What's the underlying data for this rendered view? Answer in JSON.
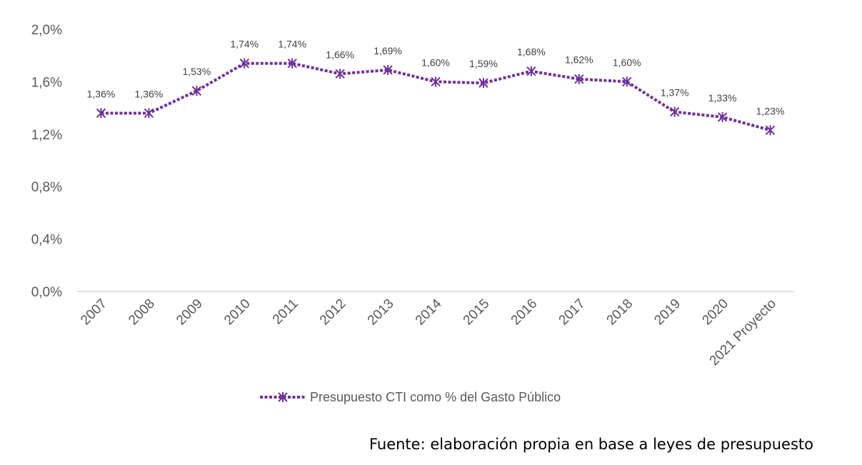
{
  "chart_data": {
    "type": "line",
    "categories": [
      "2007",
      "2008",
      "2009",
      "2010",
      "2011",
      "2012",
      "2013",
      "2014",
      "2015",
      "2016",
      "2017",
      "2018",
      "2019",
      "2020",
      "2021 Proyecto"
    ],
    "series": [
      {
        "name": "Presupuesto CTI como % del Gasto Público",
        "values": [
          1.36,
          1.36,
          1.53,
          1.74,
          1.74,
          1.66,
          1.69,
          1.6,
          1.59,
          1.68,
          1.62,
          1.6,
          1.37,
          1.33,
          1.23
        ],
        "labels": [
          "1,36%",
          "1,36%",
          "1,53%",
          "1,74%",
          "1,74%",
          "1,66%",
          "1,69%",
          "1,60%",
          "1,59%",
          "1,68%",
          "1,62%",
          "1,60%",
          "1,37%",
          "1,33%",
          "1,23%"
        ],
        "color": "#7030A0",
        "marker": "asterisk-x",
        "line_style": "dotted"
      }
    ],
    "yticks": [
      {
        "value": 0.0,
        "label": "0,0%"
      },
      {
        "value": 0.4,
        "label": "0,4%"
      },
      {
        "value": 0.8,
        "label": "0,8%"
      },
      {
        "value": 1.2,
        "label": "1,2%"
      },
      {
        "value": 1.6,
        "label": "1,6%"
      },
      {
        "value": 2.0,
        "label": "2,0%"
      }
    ],
    "ylim": [
      0,
      2.0
    ],
    "grid": false,
    "legend_position": "bottom",
    "title": "",
    "xlabel": "",
    "ylabel": ""
  },
  "source_note": "Fuente: elaboración propia en base a leyes de presupuesto",
  "colors": {
    "series": "#7030A0",
    "axis_text": "#595959",
    "axis_line": "#D9D9D9",
    "data_label": "#404040"
  }
}
